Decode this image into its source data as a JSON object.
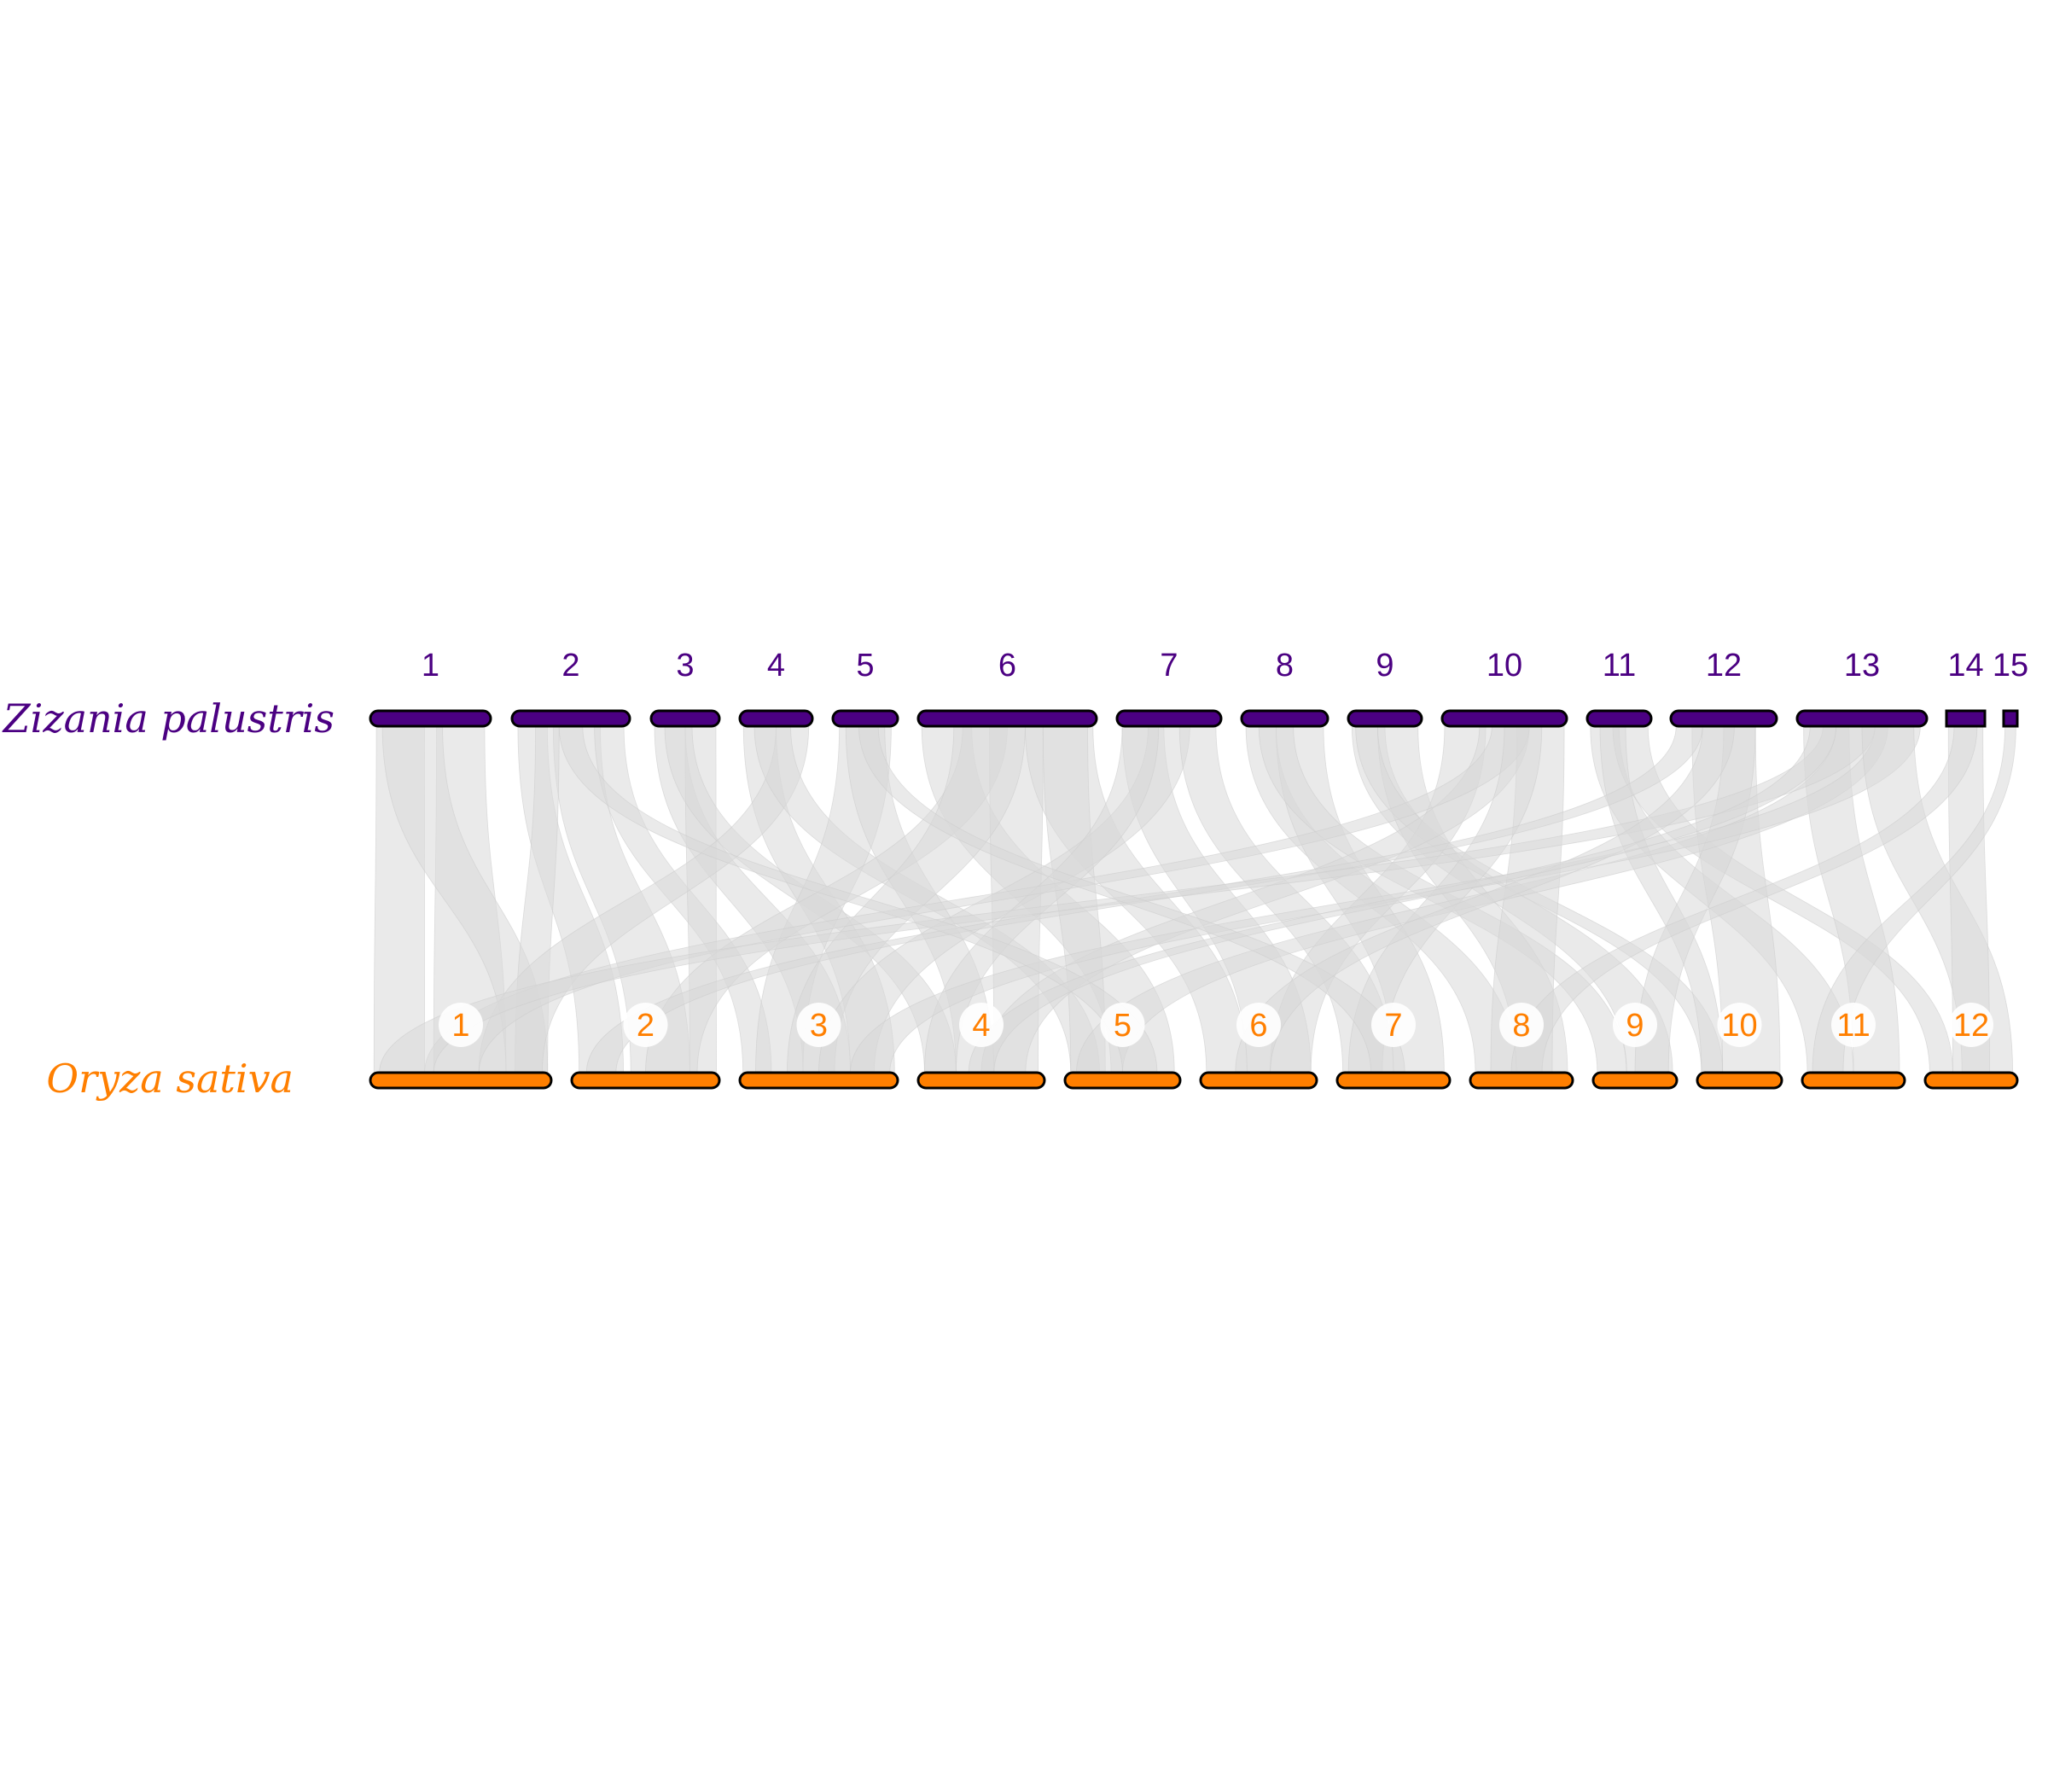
{
  "genome_top": {
    "species": "Zizania palustris",
    "color": "#4B0082",
    "chromosomes": [
      {
        "label": "1",
        "start": 434,
        "end": 575
      },
      {
        "label": "2",
        "start": 600,
        "end": 738
      },
      {
        "label": "3",
        "start": 763,
        "end": 843
      },
      {
        "label": "4",
        "start": 867,
        "end": 952
      },
      {
        "label": "5",
        "start": 976,
        "end": 1052
      },
      {
        "label": "6",
        "start": 1076,
        "end": 1285
      },
      {
        "label": "7",
        "start": 1309,
        "end": 1431
      },
      {
        "label": "8",
        "start": 1455,
        "end": 1556
      },
      {
        "label": "9",
        "start": 1580,
        "end": 1666
      },
      {
        "label": "10",
        "start": 1690,
        "end": 1836
      },
      {
        "label": "11",
        "start": 1860,
        "end": 1935
      },
      {
        "label": "12",
        "start": 1958,
        "end": 2082
      },
      {
        "label": "13",
        "start": 2106,
        "end": 2258
      },
      {
        "label": "14",
        "start": 2281,
        "end": 2326
      },
      {
        "label": "15",
        "start": 2348,
        "end": 2364
      }
    ]
  },
  "genome_bottom": {
    "species": "Oryza sativa",
    "color": "#FF7F00",
    "chromosomes": [
      {
        "label": "1",
        "start": 434,
        "end": 646
      },
      {
        "label": "2",
        "start": 670,
        "end": 843
      },
      {
        "label": "3",
        "start": 867,
        "end": 1052
      },
      {
        "label": "4",
        "start": 1076,
        "end": 1224
      },
      {
        "label": "5",
        "start": 1248,
        "end": 1383
      },
      {
        "label": "6",
        "start": 1407,
        "end": 1543
      },
      {
        "label": "7",
        "start": 1567,
        "end": 1699
      },
      {
        "label": "8",
        "start": 1723,
        "end": 1843
      },
      {
        "label": "9",
        "start": 1867,
        "end": 1965
      },
      {
        "label": "10",
        "start": 1989,
        "end": 2088
      },
      {
        "label": "11",
        "start": 2112,
        "end": 2232
      },
      {
        "label": "12",
        "start": 2256,
        "end": 2364
      }
    ]
  },
  "link_color": "#d9d9d9",
  "synteny_links": [
    [
      1,
      0.05,
      0.45,
      1,
      0.02,
      0.3
    ],
    [
      1,
      0.55,
      0.95,
      1,
      0.35,
      0.75
    ],
    [
      1,
      0.1,
      0.6,
      1,
      0.75,
      0.98
    ],
    [
      2,
      0.05,
      0.3,
      2,
      0.05,
      0.35
    ],
    [
      2,
      0.35,
      0.75,
      2,
      0.4,
      0.8
    ],
    [
      2,
      0.2,
      0.4,
      1,
      0.8,
      0.98
    ],
    [
      2,
      0.7,
      0.95,
      3,
      0.02,
      0.2
    ],
    [
      3,
      0.05,
      0.5,
      3,
      0.4,
      0.7
    ],
    [
      3,
      0.5,
      0.95,
      2,
      0.8,
      0.98
    ],
    [
      3,
      0.2,
      0.6,
      4,
      0.05,
      0.3
    ],
    [
      4,
      0.05,
      0.5,
      3,
      0.7,
      0.98
    ],
    [
      4,
      0.5,
      0.95,
      1,
      0.6,
      0.95
    ],
    [
      4,
      0.2,
      0.7,
      5,
      0.05,
      0.3
    ],
    [
      5,
      0.1,
      0.9,
      3,
      0.1,
      0.4
    ],
    [
      5,
      0.2,
      0.8,
      4,
      0.3,
      0.6
    ],
    [
      6,
      0.02,
      0.3,
      5,
      0.4,
      0.95
    ],
    [
      6,
      0.25,
      0.5,
      2,
      0.5,
      0.85
    ],
    [
      6,
      0.4,
      0.7,
      4,
      0.6,
      0.95
    ],
    [
      6,
      0.6,
      0.98,
      6,
      0.05,
      0.4
    ],
    [
      6,
      0.2,
      0.6,
      3,
      0.3,
      0.6
    ],
    [
      6,
      0.7,
      0.95,
      5,
      0.05,
      0.35
    ],
    [
      7,
      0.05,
      0.45,
      6,
      0.4,
      0.95
    ],
    [
      7,
      0.3,
      0.7,
      3,
      0.5,
      0.85
    ],
    [
      7,
      0.6,
      0.95,
      7,
      0.05,
      0.5
    ],
    [
      7,
      0.05,
      0.4,
      4,
      0.05,
      0.3
    ],
    [
      8,
      0.05,
      0.4,
      8,
      0.05,
      0.45
    ],
    [
      8,
      0.4,
      0.95,
      7,
      0.5,
      0.95
    ],
    [
      8,
      0.2,
      0.6,
      9,
      0.05,
      0.4
    ],
    [
      9,
      0.05,
      0.5,
      9,
      0.4,
      0.95
    ],
    [
      9,
      0.4,
      0.95,
      8,
      0.45,
      0.95
    ],
    [
      9,
      0.1,
      0.4,
      10,
      0.05,
      0.3
    ],
    [
      10,
      0.02,
      0.35,
      6,
      0.6,
      0.95
    ],
    [
      10,
      0.3,
      0.7,
      4,
      0.5,
      0.85
    ],
    [
      10,
      0.6,
      0.98,
      8,
      0.2,
      0.8
    ],
    [
      10,
      0.4,
      0.7,
      1,
      0.3,
      0.6
    ],
    [
      10,
      0.5,
      0.8,
      7,
      0.1,
      0.4
    ],
    [
      11,
      0.05,
      0.5,
      11,
      0.05,
      0.5
    ],
    [
      11,
      0.4,
      0.95,
      12,
      0.05,
      0.3
    ],
    [
      11,
      0.2,
      0.6,
      10,
      0.05,
      0.3
    ],
    [
      12,
      0.2,
      0.8,
      10,
      0.3,
      0.98
    ],
    [
      12,
      0.05,
      0.3,
      2,
      0.1,
      0.3
    ],
    [
      12,
      0.5,
      0.8,
      9,
      0.5,
      0.9
    ],
    [
      13,
      0.05,
      0.4,
      11,
      0.5,
      0.95
    ],
    [
      13,
      0.3,
      0.7,
      5,
      0.1,
      0.5
    ],
    [
      13,
      0.6,
      0.95,
      3,
      0.7,
      0.95
    ],
    [
      13,
      0.2,
      0.6,
      1,
      0.05,
      0.35
    ],
    [
      13,
      0.5,
      0.9,
      12,
      0.4,
      0.95
    ],
    [
      14,
      0.05,
      0.95,
      12,
      0.3,
      0.7
    ],
    [
      14,
      0.2,
      0.8,
      8,
      0.4,
      0.7
    ],
    [
      15,
      0.1,
      0.9,
      11,
      0.1,
      0.4
    ],
    [
      2,
      0.4,
      0.6,
      5,
      0.5,
      0.8
    ],
    [
      5,
      0.4,
      0.7,
      7,
      0.3,
      0.6
    ],
    [
      12,
      0.3,
      0.6,
      6,
      0.3,
      0.6
    ],
    [
      13,
      0.1,
      0.3,
      4,
      0.4,
      0.6
    ]
  ]
}
